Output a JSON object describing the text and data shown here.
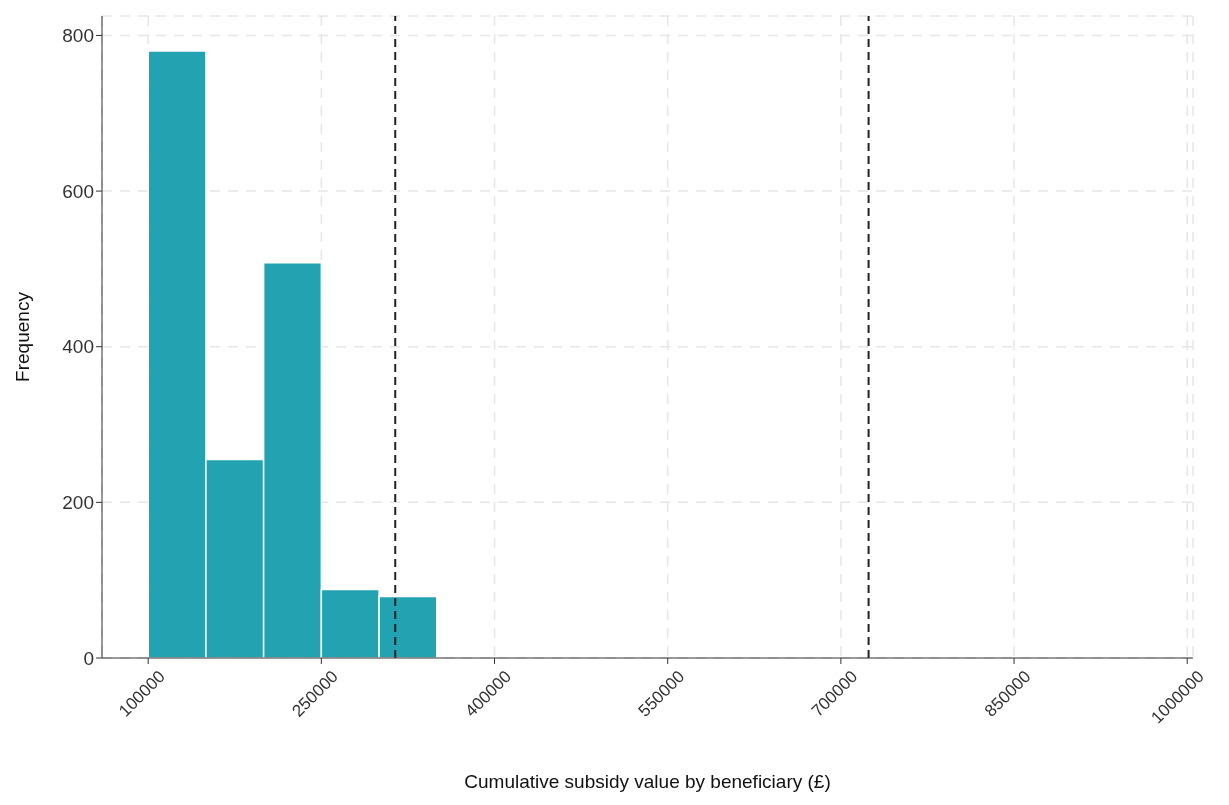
{
  "chart_data": {
    "type": "histogram",
    "xlabel": "Cumulative subsidy value by beneficiary (£)",
    "ylabel": "Frequency",
    "bins": [
      100000,
      150000,
      200000,
      250000,
      300000,
      350000,
      400000,
      450000,
      500000,
      550000,
      600000,
      650000
    ],
    "values": [
      780,
      255,
      508,
      88,
      79,
      null,
      null,
      0,
      0,
      0,
      null
    ],
    "color": "#23a2b1",
    "xlim": [
      60000,
      1005000
    ],
    "xticks": [
      100000,
      250000,
      400000,
      550000,
      700000,
      850000,
      1000000
    ],
    "ylim": [
      0,
      825
    ],
    "yticks": [
      0,
      200,
      400,
      600,
      800
    ],
    "grid": true,
    "ref_lines": [
      {
        "axis": "x",
        "value": 314000,
        "color": "#222222",
        "line_style": "dashed"
      },
      {
        "axis": "x",
        "value": 724000,
        "color": "#222222",
        "line_style": "dashed"
      }
    ]
  }
}
